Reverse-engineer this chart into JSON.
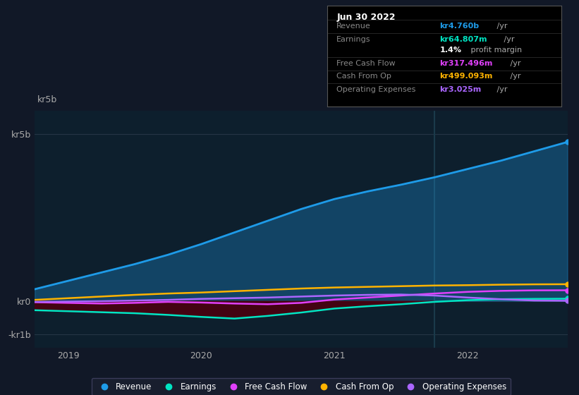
{
  "bg_color": "#111827",
  "plot_bg_color": "#0d1f2d",
  "title_box_text": "Jun 30 2022",
  "info_rows": [
    {
      "label": "Revenue",
      "value": "kr4.760b",
      "suffix": " /yr",
      "value_color": "#1e9be8"
    },
    {
      "label": "Earnings",
      "value": "kr64.807m",
      "suffix": " /yr",
      "value_color": "#00e5c3"
    },
    {
      "label": "",
      "value": "1.4%",
      "suffix": " profit margin",
      "value_color": "#ffffff"
    },
    {
      "label": "Free Cash Flow",
      "value": "kr317.496m",
      "suffix": " /yr",
      "value_color": "#e040fb"
    },
    {
      "label": "Cash From Op",
      "value": "kr499.093m",
      "suffix": " /yr",
      "value_color": "#ffb300"
    },
    {
      "label": "Operating Expenses",
      "value": "kr3.025m",
      "suffix": " /yr",
      "value_color": "#aa66ff"
    }
  ],
  "x_ticks": [
    2019,
    2020,
    2021,
    2022
  ],
  "y_ticks_labels": [
    "kr5b",
    "kr0",
    "-kr1b"
  ],
  "y_ticks_values": [
    5000000000,
    0,
    -1000000000
  ],
  "ylim": [
    -1400000000,
    5700000000
  ],
  "xlim_start": 2018.75,
  "xlim_end": 2022.75,
  "Revenue_x": [
    2018.75,
    2019.0,
    2019.25,
    2019.5,
    2019.75,
    2020.0,
    2020.25,
    2020.5,
    2020.75,
    2021.0,
    2021.25,
    2021.5,
    2021.75,
    2022.0,
    2022.25,
    2022.5,
    2022.75
  ],
  "Revenue_y": [
    350000000,
    600000000,
    850000000,
    1100000000,
    1380000000,
    1700000000,
    2050000000,
    2400000000,
    2750000000,
    3050000000,
    3280000000,
    3480000000,
    3700000000,
    3950000000,
    4200000000,
    4480000000,
    4760000000
  ],
  "Earnings_x": [
    2018.75,
    2019.0,
    2019.25,
    2019.5,
    2019.75,
    2020.0,
    2020.25,
    2020.5,
    2020.75,
    2021.0,
    2021.25,
    2021.5,
    2021.75,
    2022.0,
    2022.25,
    2022.5,
    2022.75
  ],
  "Earnings_y": [
    -280000000,
    -310000000,
    -340000000,
    -370000000,
    -420000000,
    -480000000,
    -530000000,
    -450000000,
    -350000000,
    -230000000,
    -160000000,
    -100000000,
    -30000000,
    20000000,
    50000000,
    60000000,
    64807000
  ],
  "FCF_x": [
    2018.75,
    2019.0,
    2019.25,
    2019.5,
    2019.75,
    2020.0,
    2020.25,
    2020.5,
    2020.75,
    2021.0,
    2021.25,
    2021.5,
    2021.75,
    2022.0,
    2022.25,
    2022.5,
    2022.75
  ],
  "FCF_y": [
    -40000000,
    -60000000,
    -80000000,
    -60000000,
    -30000000,
    -50000000,
    -80000000,
    -100000000,
    -60000000,
    40000000,
    100000000,
    160000000,
    220000000,
    270000000,
    300000000,
    315000000,
    317496000
  ],
  "CashFromOp_x": [
    2018.75,
    2019.0,
    2019.25,
    2019.5,
    2019.75,
    2020.0,
    2020.25,
    2020.5,
    2020.75,
    2021.0,
    2021.25,
    2021.5,
    2021.75,
    2022.0,
    2022.25,
    2022.5,
    2022.75
  ],
  "CashFromOp_y": [
    30000000,
    80000000,
    130000000,
    180000000,
    220000000,
    250000000,
    290000000,
    330000000,
    370000000,
    400000000,
    420000000,
    440000000,
    460000000,
    470000000,
    485000000,
    495000000,
    499093000
  ],
  "OpEx_x": [
    2018.75,
    2019.0,
    2019.25,
    2019.5,
    2019.75,
    2020.0,
    2020.25,
    2020.5,
    2020.75,
    2021.0,
    2021.25,
    2021.5,
    2021.75,
    2022.0,
    2022.25,
    2022.5,
    2022.75
  ],
  "OpEx_y": [
    -30000000,
    -20000000,
    -10000000,
    10000000,
    30000000,
    60000000,
    80000000,
    100000000,
    130000000,
    160000000,
    180000000,
    190000000,
    160000000,
    100000000,
    50000000,
    10000000,
    3025000
  ],
  "Revenue_color": "#1e9be8",
  "Earnings_color": "#00e5c3",
  "FCF_color": "#e040fb",
  "CashFromOp_color": "#ffb300",
  "OpEx_color": "#aa66ff",
  "fill_color": "#1e9be8",
  "fill_alpha": 0.3,
  "earnings_fill_color": "#4a0010",
  "vertical_line_x": 2021.75,
  "legend": [
    {
      "label": "Revenue",
      "color": "#1e9be8"
    },
    {
      "label": "Earnings",
      "color": "#00e5c3"
    },
    {
      "label": "Free Cash Flow",
      "color": "#e040fb"
    },
    {
      "label": "Cash From Op",
      "color": "#ffb300"
    },
    {
      "label": "Operating Expenses",
      "color": "#aa66ff"
    }
  ]
}
